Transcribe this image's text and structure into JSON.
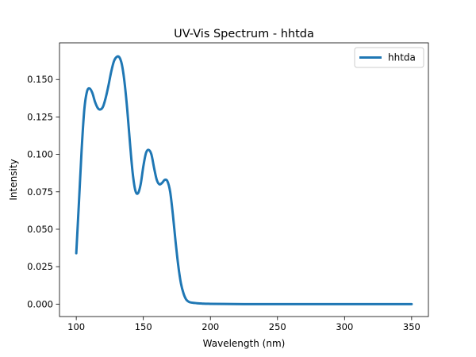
{
  "chart_data": {
    "type": "line",
    "title": "UV-Vis Spectrum - hhtda",
    "xlabel": "Wavelength (nm)",
    "ylabel": "Intensity",
    "xlim": [
      87.5,
      362.5
    ],
    "ylim": [
      -0.0083,
      0.1745
    ],
    "xticks": [
      100,
      150,
      200,
      250,
      300,
      350
    ],
    "xtick_labels": [
      "100",
      "150",
      "200",
      "250",
      "300",
      "350"
    ],
    "yticks": [
      0.0,
      0.025,
      0.05,
      0.075,
      0.1,
      0.125,
      0.15
    ],
    "ytick_labels": [
      "0.000",
      "0.025",
      "0.050",
      "0.075",
      "0.100",
      "0.125",
      "0.150"
    ],
    "grid": false,
    "legend_position": "top-right",
    "series": [
      {
        "name": "hhtda",
        "color": "#1f77b4",
        "x": [
          100,
          102,
          104,
          106,
          108,
          110,
          112,
          114,
          116,
          118,
          120,
          122,
          124,
          126,
          128,
          130,
          132,
          134,
          136,
          138,
          140,
          142,
          144,
          146,
          148,
          150,
          152,
          154,
          156,
          158,
          160,
          162,
          164,
          166,
          168,
          170,
          172,
          174,
          176,
          178,
          180,
          182,
          184,
          186,
          188,
          190,
          195,
          200,
          210,
          225,
          250,
          275,
          300,
          325,
          350
        ],
        "y": [
          0.034,
          0.068,
          0.103,
          0.13,
          0.142,
          0.144,
          0.141,
          0.135,
          0.131,
          0.13,
          0.132,
          0.138,
          0.146,
          0.155,
          0.162,
          0.165,
          0.165,
          0.16,
          0.148,
          0.13,
          0.108,
          0.088,
          0.076,
          0.074,
          0.08,
          0.092,
          0.101,
          0.103,
          0.1,
          0.091,
          0.083,
          0.08,
          0.081,
          0.083,
          0.082,
          0.075,
          0.06,
          0.042,
          0.026,
          0.014,
          0.007,
          0.003,
          0.0015,
          0.001,
          0.0008,
          0.0006,
          0.0003,
          0.0002,
          0.0001,
          0.0,
          0.0,
          0.0,
          0.0,
          0.0,
          0.0
        ]
      }
    ]
  }
}
